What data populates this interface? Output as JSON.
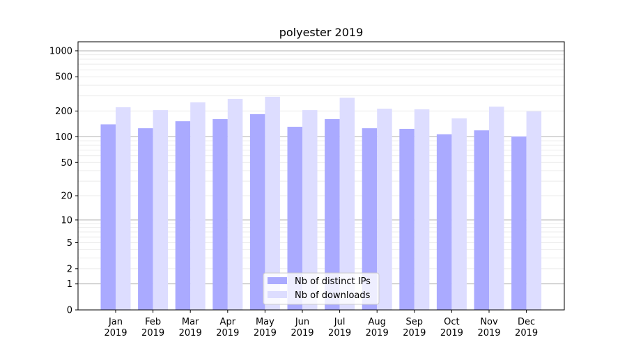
{
  "chart_data": {
    "type": "bar",
    "title": "polyester 2019",
    "xlabel": "",
    "ylabel": "",
    "yscale": "symlog",
    "ylim": [
      0,
      1200
    ],
    "yticks": [
      0,
      1,
      2,
      5,
      10,
      20,
      50,
      100,
      200,
      500,
      1000
    ],
    "grid": true,
    "legend_position": "lower center",
    "categories": [
      "Jan\n2019",
      "Feb\n2019",
      "Mar\n2019",
      "Apr\n2019",
      "May\n2019",
      "Jun\n2019",
      "Jul\n2019",
      "Aug\n2019",
      "Sep\n2019",
      "Oct\n2019",
      "Nov\n2019",
      "Dec\n2019"
    ],
    "series": [
      {
        "name": "Nb of distinct IPs",
        "color": "#aaaaff",
        "values": [
          140,
          126,
          152,
          161,
          184,
          131,
          161,
          126,
          124,
          107,
          119,
          101
        ]
      },
      {
        "name": "Nb of downloads",
        "color": "#ddddff",
        "values": [
          221,
          205,
          252,
          277,
          293,
          205,
          285,
          213,
          209,
          164,
          225,
          198
        ]
      }
    ]
  }
}
